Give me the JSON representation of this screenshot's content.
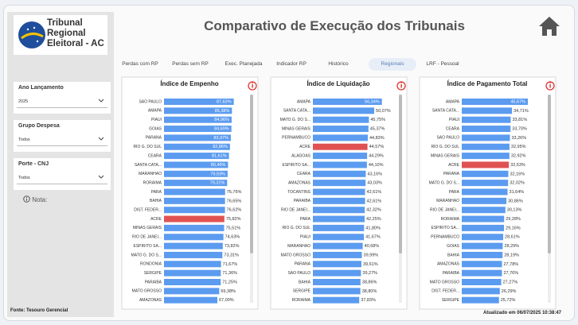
{
  "logo": {
    "lines": [
      "Tribunal",
      "Regional",
      "Eleitoral - AC"
    ]
  },
  "header": {
    "title": "Comparativo de Execução dos Tribunais"
  },
  "tabs": [
    {
      "label": "Perdas com RP",
      "active": false
    },
    {
      "label": "Perdas sem RP",
      "active": false
    },
    {
      "label": "Exec. Planejada",
      "active": false
    },
    {
      "label": "Indicador RP",
      "active": false
    },
    {
      "label": "Histórico",
      "active": false
    },
    {
      "label": "Regionais",
      "active": true
    },
    {
      "label": "LRF - Pessoal",
      "active": false
    }
  ],
  "filters": [
    {
      "label": "Ano Lançamento",
      "value": "2025"
    },
    {
      "label": "Grupo Despesa",
      "value": "Todos"
    },
    {
      "label": "Porte - CNJ",
      "value": "Todos"
    }
  ],
  "note": "Nota:",
  "footer": {
    "source": "Fonte: Tesouro Gerencial",
    "updated": "Atualizado em 06/07/2025 10:38:47"
  },
  "chart_data": [
    {
      "type": "bar",
      "orientation": "horizontal",
      "title": "Índice de Empenho",
      "xlim": [
        0,
        100
      ],
      "categories": [
        "SAO PAULO",
        "AMAPA",
        "PIAUI",
        "GOIAS",
        "PARANA",
        "RIO G. DO SUL",
        "CEARA",
        "SANTA CATA...",
        "MARANHAO",
        "RORAIMA",
        "PARA",
        "BAHIA",
        "DIST. FEDER...",
        "ACRE",
        "MINAS GERAIS",
        "RIO DE JANEI...",
        "ESPIRITO SA...",
        "MATO G. DO S...",
        "RONDONIA",
        "SERGIPE",
        "PARAIBA",
        "MATO GROSSO",
        "AMAZONAS"
      ],
      "values": [
        87.63,
        85.38,
        84.96,
        84.69,
        83.97,
        82.86,
        81.61,
        80.46,
        79.93,
        79.31,
        76.76,
        76.65,
        76.62,
        75.82,
        75.51,
        74.63,
        73.82,
        73.31,
        71.67,
        71.36,
        71.25,
        69.38,
        67.0
      ],
      "value_labels": [
        "87,63%",
        "85,38%",
        "84,96%",
        "84,69%",
        "83,97%",
        "82,86%",
        "81,61%",
        "80,46%",
        "79,93%",
        "79,31%",
        "76,76%",
        "76,65%",
        "76,62%",
        "75,82%",
        "75,51%",
        "74,63%",
        "73,82%",
        "73,31%",
        "71,67%",
        "71,36%",
        "71,25%",
        "69,38%",
        "67,00%"
      ],
      "colors": [
        "#5b9bf0",
        "#5b9bf0",
        "#5b9bf0",
        "#5b9bf0",
        "#5b9bf0",
        "#5b9bf0",
        "#5b9bf0",
        "#5b9bf0",
        "#5b9bf0",
        "#5b9bf0",
        "#5b9bf0",
        "#5b9bf0",
        "#5b9bf0",
        "#e05252",
        "#5b9bf0",
        "#5b9bf0",
        "#5b9bf0",
        "#5b9bf0",
        "#5b9bf0",
        "#5b9bf0",
        "#5b9bf0",
        "#5b9bf0",
        "#5b9bf0"
      ]
    },
    {
      "type": "bar",
      "orientation": "horizontal",
      "title": "Índice de Liquidação",
      "xlim": [
        0,
        65
      ],
      "categories": [
        "AMAPA",
        "SANTA CATA...",
        "MATO G. DO S...",
        "MINAS GERAIS",
        "PERNAMBUCO",
        "ACRE",
        "ALAGOAS",
        "ESPIRITO SA...",
        "CEARA",
        "AMAZONAS",
        "TOCANTINS",
        "PARAIBA",
        "RIO DE JANEI...",
        "PARA",
        "RIO G. DO SUL",
        "PIAUI",
        "MARANHAO",
        "MATO GROSSO",
        "PARANA",
        "SAO PAULO",
        "BAHIA",
        "SERGIPE",
        "RORAIMA"
      ],
      "values": [
        56.34,
        50.07,
        45.75,
        45.37,
        44.83,
        44.57,
        44.29,
        44.1,
        43.16,
        43.03,
        42.61,
        42.61,
        42.32,
        42.25,
        41.8,
        41.67,
        40.68,
        39.99,
        39.61,
        39.27,
        38.86,
        38.8,
        37.83
      ],
      "value_labels": [
        "56,34%",
        "50,07%",
        "45,75%",
        "45,37%",
        "44,83%",
        "44,57%",
        "44,29%",
        "44,10%",
        "43,16%",
        "43,03%",
        "42,61%",
        "42,61%",
        "42,32%",
        "42,25%",
        "41,80%",
        "41,67%",
        "40,68%",
        "39,99%",
        "39,61%",
        "39,27%",
        "38,86%",
        "38,80%",
        "37,83%"
      ],
      "colors": [
        "#5b9bf0",
        "#5b9bf0",
        "#5b9bf0",
        "#5b9bf0",
        "#5b9bf0",
        "#e05252",
        "#5b9bf0",
        "#5b9bf0",
        "#5b9bf0",
        "#5b9bf0",
        "#5b9bf0",
        "#5b9bf0",
        "#5b9bf0",
        "#5b9bf0",
        "#5b9bf0",
        "#5b9bf0",
        "#5b9bf0",
        "#5b9bf0",
        "#5b9bf0",
        "#5b9bf0",
        "#5b9bf0",
        "#5b9bf0",
        "#5b9bf0"
      ]
    },
    {
      "type": "bar",
      "orientation": "horizontal",
      "title": "Índice de Pagamento Total",
      "xlim": [
        0,
        55
      ],
      "categories": [
        "AMAPA",
        "SANTA CATA...",
        "PIAUI",
        "CEARA",
        "SAO PAULO",
        "RIO G. DO SUL",
        "MINAS GERAIS",
        "ACRE",
        "PARANA",
        "MATO G. DO S...",
        "PARA",
        "MARANHAO",
        "RIO DE JANEI...",
        "RORAIMA",
        "ESPIRITO SA...",
        "PERNAMBUCO",
        "GOIAS",
        "BAHIA",
        "AMAZONAS",
        "PARAIBA",
        "MATO GROSSO",
        "DIST. FEDER...",
        "SERGIPE"
      ],
      "values": [
        45.67,
        34.71,
        33.81,
        33.7,
        33.26,
        32.95,
        32.92,
        32.53,
        32.16,
        32.02,
        31.64,
        30.86,
        30.13,
        29.28,
        29.16,
        28.61,
        28.29,
        28.19,
        27.78,
        27.76,
        27.27,
        26.29,
        25.72
      ],
      "value_labels": [
        "45,67%",
        "34,71%",
        "33,81%",
        "33,70%",
        "33,26%",
        "32,95%",
        "32,92%",
        "32,53%",
        "32,16%",
        "32,02%",
        "31,64%",
        "30,86%",
        "30,13%",
        "29,28%",
        "29,16%",
        "28,61%",
        "28,29%",
        "28,19%",
        "27,78%",
        "27,76%",
        "27,27%",
        "26,29%",
        "25,72%"
      ],
      "colors": [
        "#5b9bf0",
        "#5b9bf0",
        "#5b9bf0",
        "#5b9bf0",
        "#5b9bf0",
        "#5b9bf0",
        "#5b9bf0",
        "#e05252",
        "#5b9bf0",
        "#5b9bf0",
        "#5b9bf0",
        "#5b9bf0",
        "#5b9bf0",
        "#5b9bf0",
        "#5b9bf0",
        "#5b9bf0",
        "#5b9bf0",
        "#5b9bf0",
        "#5b9bf0",
        "#5b9bf0",
        "#5b9bf0",
        "#5b9bf0",
        "#5b9bf0"
      ]
    }
  ]
}
